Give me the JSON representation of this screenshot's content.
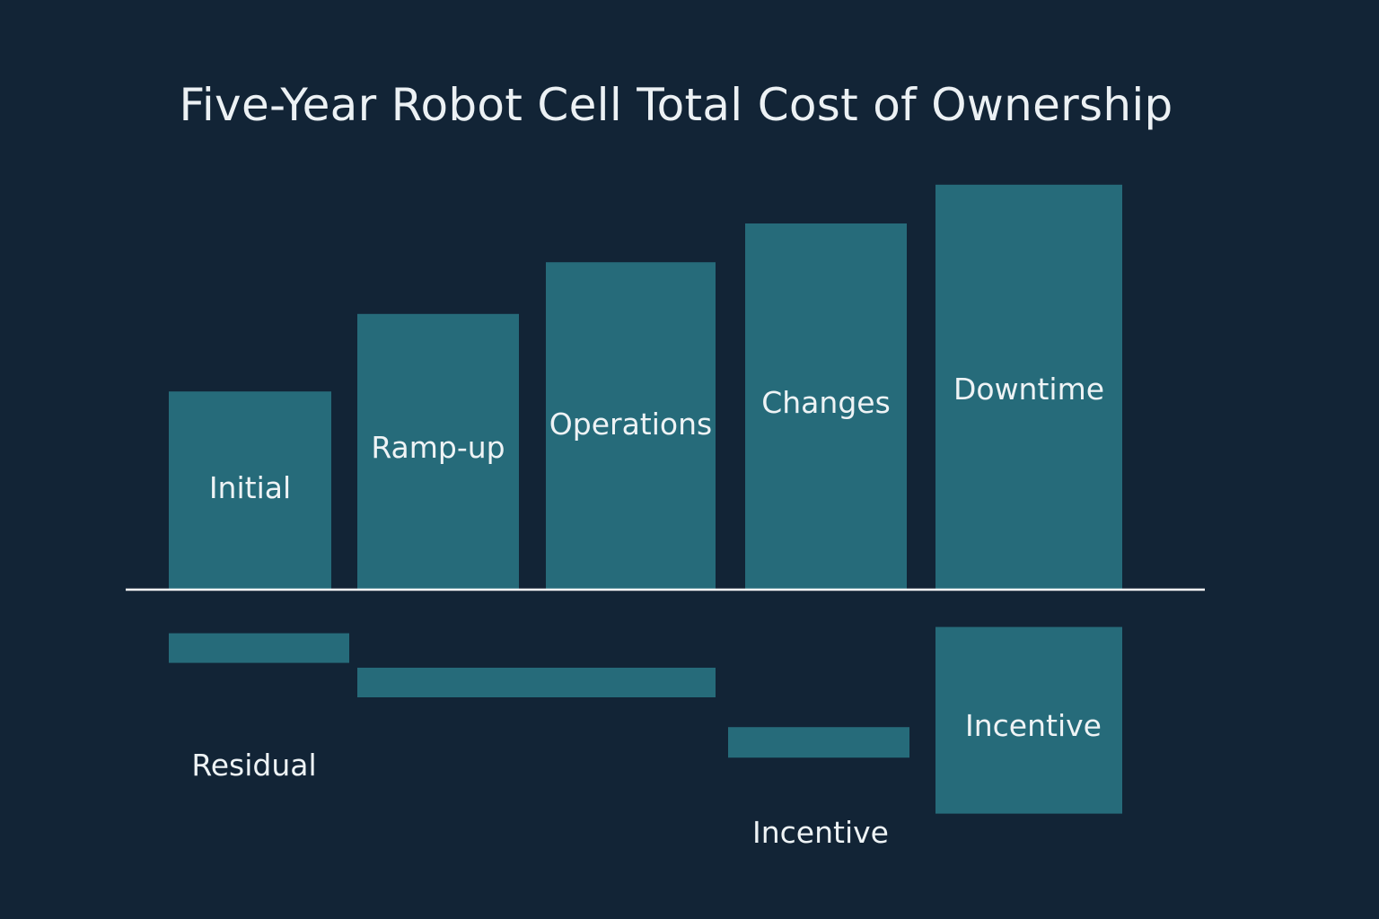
{
  "chart_data": {
    "type": "bar",
    "title": "Five-Year Robot Cell Total Cost of Ownership",
    "xlabel": "",
    "ylabel": "",
    "grid": false,
    "legend": "none",
    "ylim": [
      -5.3,
      9.6
    ],
    "categories": [
      "Initial",
      "Ramp-up",
      "Operations",
      "Changes",
      "Downtime"
    ],
    "series": [
      {
        "values": [
          4.6,
          6.4,
          7.6,
          8.5,
          9.4
        ]
      },
      {
        "values": [
          -1.7,
          -2.5,
          -2.5,
          -3.9,
          -5.2
        ],
        "labels": [
          "Residual",
          "",
          "",
          "Incentive",
          "Incentive"
        ]
      }
    ],
    "colors": {
      "background": "#122436",
      "bar": "#266b7a",
      "axis": "#ffffff",
      "text": "#eef3f5"
    }
  }
}
